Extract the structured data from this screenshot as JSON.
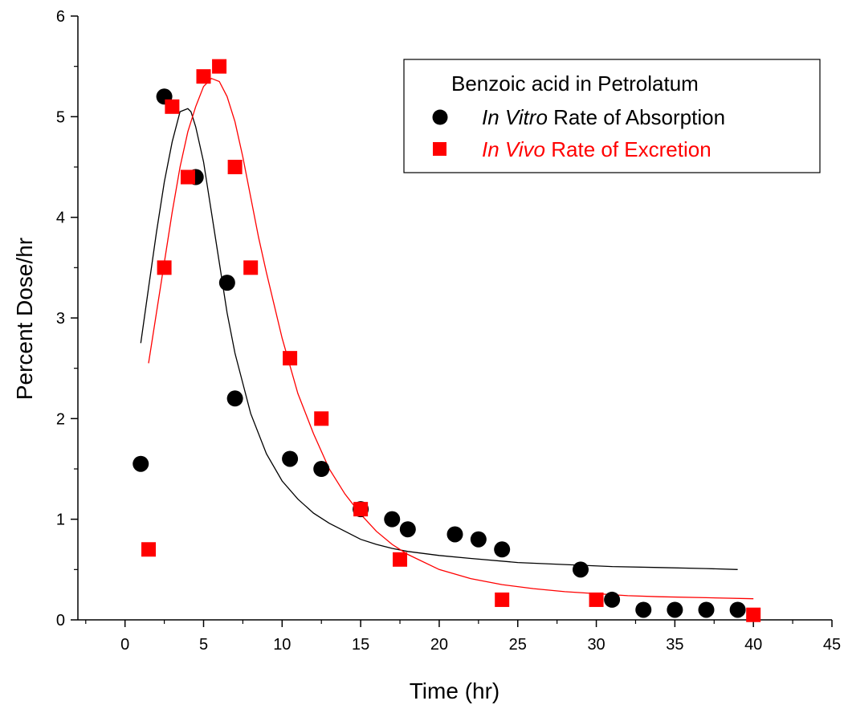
{
  "chart_data": {
    "type": "scatter",
    "xlabel": "Time (hr)",
    "ylabel": "Percent Dose/hr",
    "xlim": [
      -3,
      45
    ],
    "ylim": [
      0,
      6
    ],
    "xticks": [
      "0",
      "5",
      "10",
      "15",
      "20",
      "25",
      "30",
      "35",
      "40",
      "45"
    ],
    "yticks": [
      "0",
      "1",
      "2",
      "3",
      "4",
      "5",
      "6"
    ],
    "grid": false,
    "legend": {
      "title": "Benzoic acid in Petrolatum",
      "placement": "top-right",
      "entries": [
        {
          "italic": "In Vitro",
          "rest": " Rate of Absorption"
        },
        {
          "italic": "In Vivo",
          "rest": " Rate of Excretion"
        }
      ]
    },
    "colors": {
      "in_vitro": "#000000",
      "in_vivo": "#ff0000"
    },
    "series": [
      {
        "name": "In Vitro Rate of Absorption",
        "marker": "circle",
        "color": "#000000",
        "points": [
          [
            1,
            1.55
          ],
          [
            2.5,
            5.2
          ],
          [
            4.5,
            4.4
          ],
          [
            6.5,
            3.35
          ],
          [
            7,
            2.2
          ],
          [
            10.5,
            1.6
          ],
          [
            12.5,
            1.5
          ],
          [
            15,
            1.1
          ],
          [
            17,
            1.0
          ],
          [
            18,
            0.9
          ],
          [
            21,
            0.85
          ],
          [
            22.5,
            0.8
          ],
          [
            24,
            0.7
          ],
          [
            29,
            0.5
          ],
          [
            31,
            0.2
          ],
          [
            33,
            0.1
          ],
          [
            35,
            0.1
          ],
          [
            37,
            0.1
          ],
          [
            39,
            0.1
          ]
        ],
        "fit": [
          [
            1,
            2.75
          ],
          [
            1.5,
            3.3
          ],
          [
            2,
            3.85
          ],
          [
            2.5,
            4.35
          ],
          [
            3,
            4.75
          ],
          [
            3.5,
            5.05
          ],
          [
            4,
            5.08
          ],
          [
            4.2,
            5.05
          ],
          [
            4.5,
            4.9
          ],
          [
            5,
            4.55
          ],
          [
            5.5,
            4.05
          ],
          [
            6,
            3.55
          ],
          [
            6.5,
            3.05
          ],
          [
            7,
            2.65
          ],
          [
            7.5,
            2.35
          ],
          [
            8,
            2.05
          ],
          [
            9,
            1.65
          ],
          [
            10,
            1.38
          ],
          [
            11,
            1.2
          ],
          [
            12,
            1.06
          ],
          [
            13,
            0.96
          ],
          [
            14,
            0.88
          ],
          [
            15,
            0.8
          ],
          [
            16,
            0.75
          ],
          [
            17,
            0.71
          ],
          [
            18,
            0.68
          ],
          [
            20,
            0.64
          ],
          [
            22,
            0.61
          ],
          [
            25,
            0.57
          ],
          [
            28,
            0.55
          ],
          [
            31,
            0.53
          ],
          [
            34,
            0.52
          ],
          [
            37,
            0.51
          ],
          [
            39,
            0.5
          ]
        ]
      },
      {
        "name": "In Vivo Rate of Excretion",
        "marker": "square",
        "color": "#ff0000",
        "points": [
          [
            1.5,
            0.7
          ],
          [
            2.5,
            3.5
          ],
          [
            3,
            5.1
          ],
          [
            4,
            4.4
          ],
          [
            5,
            5.4
          ],
          [
            6,
            5.5
          ],
          [
            7,
            4.5
          ],
          [
            8,
            3.5
          ],
          [
            10.5,
            2.6
          ],
          [
            12.5,
            2.0
          ],
          [
            15,
            1.1
          ],
          [
            17.5,
            0.6
          ],
          [
            24,
            0.2
          ],
          [
            30,
            0.2
          ],
          [
            40,
            0.05
          ]
        ],
        "fit": [
          [
            1.5,
            2.55
          ],
          [
            2,
            3.05
          ],
          [
            2.5,
            3.55
          ],
          [
            3,
            4.05
          ],
          [
            3.5,
            4.5
          ],
          [
            4,
            4.85
          ],
          [
            4.5,
            5.1
          ],
          [
            5,
            5.3
          ],
          [
            5.5,
            5.38
          ],
          [
            6,
            5.35
          ],
          [
            6.5,
            5.2
          ],
          [
            7,
            4.95
          ],
          [
            7.5,
            4.6
          ],
          [
            8,
            4.2
          ],
          [
            8.5,
            3.8
          ],
          [
            9,
            3.45
          ],
          [
            10,
            2.8
          ],
          [
            11,
            2.25
          ],
          [
            12,
            1.85
          ],
          [
            13,
            1.5
          ],
          [
            14,
            1.25
          ],
          [
            15,
            1.05
          ],
          [
            16,
            0.88
          ],
          [
            17,
            0.75
          ],
          [
            18,
            0.65
          ],
          [
            20,
            0.5
          ],
          [
            22,
            0.41
          ],
          [
            24,
            0.35
          ],
          [
            26,
            0.31
          ],
          [
            28,
            0.28
          ],
          [
            30,
            0.26
          ],
          [
            32,
            0.24
          ],
          [
            34,
            0.23
          ],
          [
            37,
            0.22
          ],
          [
            40,
            0.21
          ]
        ]
      }
    ]
  }
}
